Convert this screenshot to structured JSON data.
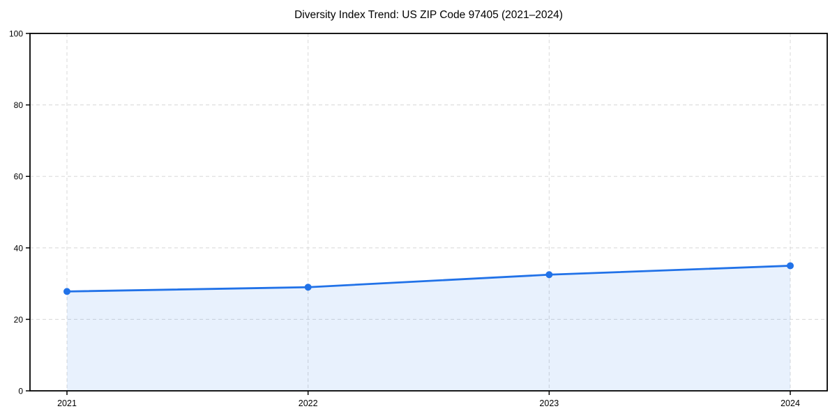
{
  "chart_data": {
    "type": "area",
    "title": "Diversity Index Trend: US ZIP Code 97405 (2021–2024)",
    "x": [
      2021,
      2022,
      2023,
      2024
    ],
    "x_tick_labels": [
      "2021",
      "2022",
      "2023",
      "2024"
    ],
    "series": [
      {
        "name": "Diversity Index",
        "values": [
          27.8,
          29.0,
          32.5,
          35.0
        ]
      }
    ],
    "xlabel": "",
    "ylabel": "",
    "ylim": [
      0,
      100
    ],
    "y_ticks": [
      0,
      20,
      40,
      60,
      80,
      100
    ],
    "grid": "dashed",
    "legend": "none",
    "colors": {
      "line": "#2172e8",
      "marker": "#2172e8",
      "fill": "rgba(33, 114, 232, 0.10)",
      "grid": "#dcdcdc",
      "axis": "#000000",
      "text": "#000000",
      "background": "#ffffff"
    }
  }
}
